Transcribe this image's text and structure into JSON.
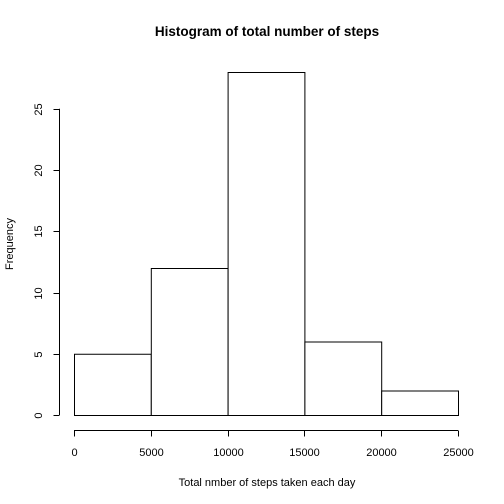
{
  "chart_data": {
    "type": "bar",
    "title": "Histogram of total number of steps",
    "xlabel": "Total nmber of steps taken each day",
    "ylabel": "Frequency",
    "bins": [
      {
        "from": 0,
        "to": 5000,
        "count": 5
      },
      {
        "from": 5000,
        "to": 10000,
        "count": 12
      },
      {
        "from": 10000,
        "to": 15000,
        "count": 28
      },
      {
        "from": 15000,
        "to": 20000,
        "count": 6
      },
      {
        "from": 20000,
        "to": 25000,
        "count": 2
      }
    ],
    "xlim": [
      0,
      25000
    ],
    "ylim": [
      0,
      28
    ],
    "x_ticks": [
      "0",
      "5000",
      "10000",
      "15000",
      "20000",
      "25000"
    ],
    "y_ticks": [
      "0",
      "5",
      "10",
      "15",
      "20",
      "25"
    ],
    "grid": false,
    "legend": "none"
  }
}
